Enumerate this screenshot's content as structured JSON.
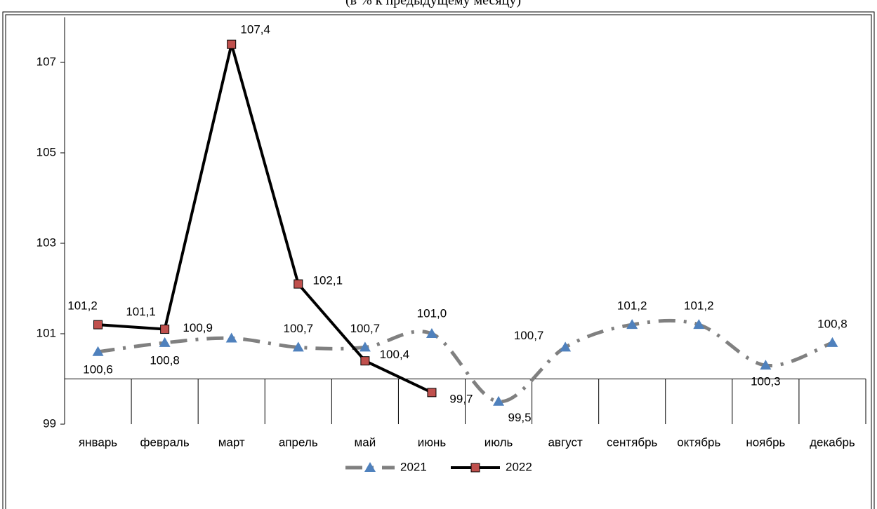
{
  "chart_data": {
    "type": "line",
    "subtitle": "(в % к предыдущему месяцу)",
    "categories": [
      "январь",
      "февраль",
      "март",
      "апрель",
      "май",
      "июнь",
      "июль",
      "август",
      "сентябрь",
      "октябрь",
      "ноябрь",
      "декабрь"
    ],
    "series": [
      {
        "name": "2021",
        "color": "#808080",
        "marker_color": "#4f81bd",
        "marker": "triangle",
        "dash": true,
        "smooth": true,
        "values": [
          100.6,
          100.8,
          100.9,
          100.7,
          100.7,
          101.0,
          99.5,
          100.7,
          101.2,
          101.2,
          100.3,
          100.8
        ],
        "value_labels": [
          "100,6",
          "100,8",
          "100,9",
          "100,7",
          "100,7",
          "101,0",
          "99,5",
          "100,7",
          "101,2",
          "101,2",
          "100,3",
          "100,8"
        ]
      },
      {
        "name": "2022",
        "color": "#000000",
        "marker_color": "#c0504d",
        "marker": "square",
        "dash": false,
        "smooth": false,
        "values": [
          101.2,
          101.1,
          107.4,
          102.1,
          100.4,
          99.7,
          null,
          null,
          null,
          null,
          null,
          null
        ],
        "value_labels": [
          "101,2",
          "101,1",
          "107,4",
          "102,1",
          "100,4",
          "99,7",
          null,
          null,
          null,
          null,
          null,
          null
        ]
      }
    ],
    "ylim": [
      99,
      108
    ],
    "yticks": [
      99,
      101,
      103,
      105,
      107
    ],
    "x_axis_crossing": 100,
    "legend": "bottom"
  }
}
